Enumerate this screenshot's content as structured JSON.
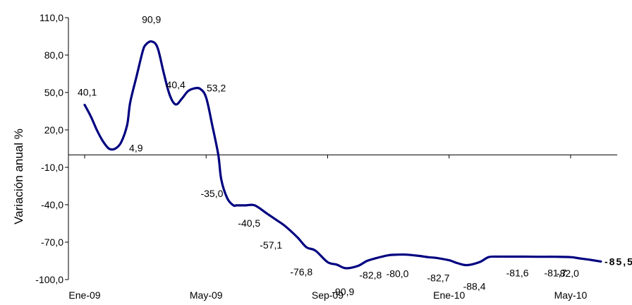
{
  "chart_data": {
    "type": "line",
    "title": "",
    "xlabel": "",
    "ylabel": "Variación anual %",
    "ylim": [
      -100,
      110
    ],
    "yticks": [
      110,
      80,
      50,
      20,
      -10,
      -40,
      -70,
      -100
    ],
    "ytick_labels": [
      "110,0",
      "80,0",
      "50,0",
      "20,0",
      "-10,0",
      "-40,0",
      "-70,0",
      "-100,0"
    ],
    "xlim": [
      0,
      17
    ],
    "xticks": [
      0,
      4,
      8,
      12,
      16
    ],
    "xtick_labels": [
      "Ene-09",
      "May-09",
      "Sep-09",
      "Ene-10",
      "May-10"
    ],
    "series_color": "#000080",
    "x": [
      0,
      0.2,
      0.4,
      0.6,
      0.8,
      1.0,
      1.2,
      1.4,
      1.5,
      1.7,
      1.9,
      2.0,
      2.2,
      2.4,
      2.6,
      2.8,
      3.0,
      3.2,
      3.4,
      3.6,
      3.8,
      4.0,
      4.2,
      4.4,
      4.5,
      4.7,
      4.9,
      5.0,
      5.3,
      5.6,
      6.0,
      6.3,
      6.6,
      7.0,
      7.3,
      7.6,
      8.0,
      8.3,
      8.6,
      9.0,
      9.3,
      9.6,
      10.0,
      10.3,
      10.6,
      11.0,
      11.3,
      11.6,
      12.0,
      12.3,
      12.6,
      13.0,
      13.3,
      13.6,
      14.0,
      14.5,
      15.0,
      15.5,
      16.0,
      16.3,
      16.6,
      17.0
    ],
    "y": [
      40.1,
      31,
      20,
      11,
      5,
      4.9,
      10,
      24,
      42,
      62,
      82,
      88,
      90.9,
      86,
      66,
      48,
      40.4,
      45,
      51,
      53.2,
      53,
      46,
      24,
      0,
      -20,
      -35,
      -40.5,
      -40.5,
      -40.5,
      -40.5,
      -47,
      -52,
      -57.1,
      -66,
      -74,
      -76.8,
      -86,
      -88,
      -90.9,
      -89,
      -85,
      -82.8,
      -80.5,
      -80,
      -80,
      -81,
      -82,
      -82.7,
      -84.5,
      -87,
      -88.4,
      -86,
      -82,
      -81.6,
      -81.6,
      -81.6,
      -81.7,
      -81.7,
      -82,
      -83,
      -84,
      -85.5
    ],
    "annotations": [
      {
        "text": "40,1"
      },
      {
        "text": "90,9"
      },
      {
        "text": "40,4"
      },
      {
        "text": "53,2"
      },
      {
        "text": "4,9"
      },
      {
        "text": "-35,0"
      },
      {
        "text": "-40,5"
      },
      {
        "text": "-57,1"
      },
      {
        "text": "-76,8"
      },
      {
        "text": "-90,9"
      },
      {
        "text": "-82,8"
      },
      {
        "text": "-80,0"
      },
      {
        "text": "-82,7"
      },
      {
        "text": "-88,4"
      },
      {
        "text": "-81,6"
      },
      {
        "text": "-81,7"
      },
      {
        "text": "-82,0"
      },
      {
        "text": "-85,5",
        "bold": true
      }
    ]
  }
}
